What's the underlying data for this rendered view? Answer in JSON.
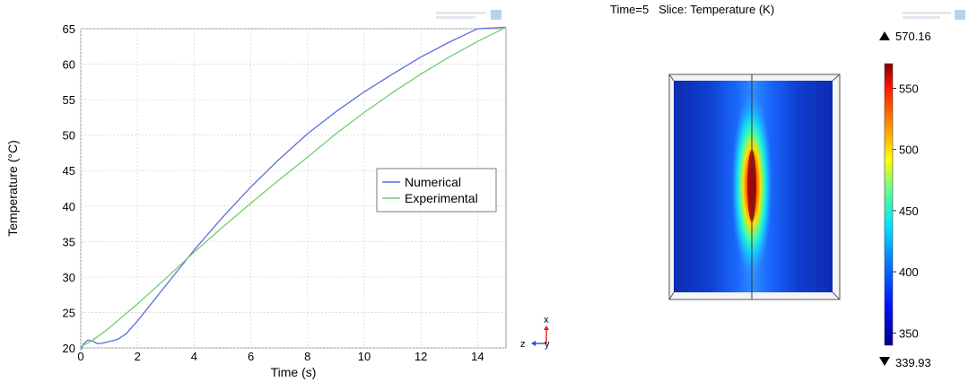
{
  "chart_data": [
    {
      "type": "line",
      "xlabel": "Time (s)",
      "ylabel": "Temperature (°C)",
      "xlim": [
        0,
        15
      ],
      "ylim": [
        20,
        65
      ],
      "x_ticks": [
        0,
        2,
        4,
        6,
        8,
        10,
        12,
        14
      ],
      "y_ticks": [
        20,
        25,
        30,
        35,
        40,
        45,
        50,
        55,
        60,
        65
      ],
      "grid": true,
      "legend_position": "right",
      "series": [
        {
          "name": "Numerical",
          "color": "#5b6ee1",
          "x": [
            0,
            0.1,
            0.25,
            0.4,
            0.6,
            0.8,
            1.0,
            1.3,
            1.6,
            2,
            2.5,
            3,
            4,
            5,
            6,
            7,
            8,
            9,
            10,
            11,
            12,
            13,
            14,
            15
          ],
          "y": [
            19.7,
            20.6,
            21.1,
            21.0,
            20.6,
            20.7,
            20.9,
            21.2,
            22.0,
            23.8,
            26.3,
            28.8,
            33.8,
            38.4,
            42.7,
            46.6,
            50.2,
            53.3,
            56.1,
            58.6,
            61.0,
            63.1,
            65.0,
            65.2
          ]
        },
        {
          "name": "Experimental",
          "color": "#6fcf6f",
          "x": [
            0,
            0.3,
            0.6,
            1.0,
            1.5,
            2,
            3,
            4,
            5,
            6,
            7,
            8,
            9,
            10,
            11,
            12,
            13,
            14,
            15
          ],
          "y": [
            20.2,
            20.8,
            21.6,
            22.8,
            24.5,
            26.2,
            29.8,
            33.5,
            37.0,
            40.4,
            43.7,
            46.9,
            50.2,
            53.2,
            56.0,
            58.6,
            61.0,
            63.2,
            65.2
          ]
        }
      ]
    },
    {
      "type": "heatmap",
      "title": "Time=5   Slice: Temperature (K)",
      "colorbar_max_label": "570.16",
      "colorbar_min_label": "339.93",
      "colorbar_ticks": [
        350,
        400,
        450,
        500,
        550
      ],
      "vmin": 339.93,
      "vmax": 570.16
    }
  ],
  "axes_indicator": {
    "x_label": "x",
    "z_label": "z",
    "y_label": "y"
  },
  "colors": {
    "x_axis": "#e02020",
    "y_axis": "#2050e0",
    "z_axis": "#2050e0"
  }
}
